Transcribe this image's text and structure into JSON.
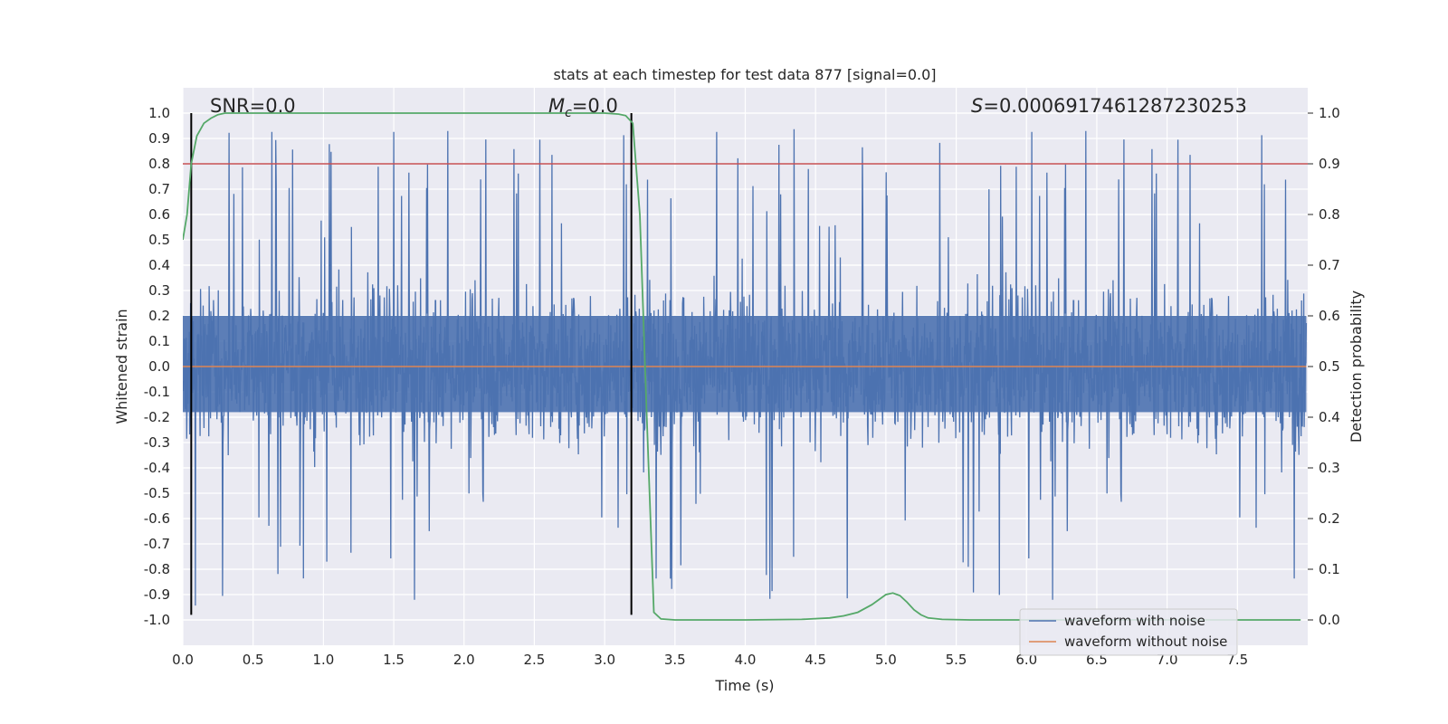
{
  "chart_data": {
    "type": "line",
    "title": "stats at each timestep for test data 877 [signal=0.0]",
    "xlabel": "Time (s)",
    "ylabel": "Whitened strain",
    "y2label": "Detection probability",
    "xlim": [
      0.0,
      8.0
    ],
    "ylim": [
      -1.1,
      1.1
    ],
    "y2lim": [
      -0.05,
      1.05
    ],
    "xticks": [
      "0.0",
      "0.5",
      "1.0",
      "1.5",
      "2.0",
      "2.5",
      "3.0",
      "3.5",
      "4.0",
      "4.5",
      "5.0",
      "5.5",
      "6.0",
      "6.5",
      "7.0",
      "7.5"
    ],
    "yticks": [
      "1.0",
      "0.9",
      "0.8",
      "0.7",
      "0.6",
      "0.5",
      "0.4",
      "0.3",
      "0.2",
      "0.1",
      "0.0",
      "-0.1",
      "-0.2",
      "-0.3",
      "-0.4",
      "-0.5",
      "-0.6",
      "-0.7",
      "-0.8",
      "-0.9",
      "-1.0"
    ],
    "y2ticks": [
      "1.0",
      "0.9",
      "0.8",
      "0.7",
      "0.6",
      "0.5",
      "0.4",
      "0.3",
      "0.2",
      "0.1",
      "0.0"
    ],
    "annotations": {
      "snr": "SNR=0.0",
      "mc_symbol": "M",
      "mc_subscript": "c",
      "mc_value": "=0.0",
      "s_symbol": "S",
      "s_value": "=0.0006917461287230253"
    },
    "threshold": {
      "y": 0.8,
      "color": "#c44e52"
    },
    "vlines": [
      0.06,
      3.19
    ],
    "series": [
      {
        "name": "waveform with noise",
        "color": "#4c72b0",
        "axis": "left",
        "note": "dense noise, amplitude mostly within -0.6..0.6 with spikes to ±1.0"
      },
      {
        "name": "waveform without noise",
        "color": "#dd8452",
        "axis": "left",
        "x": [
          0,
          7.99
        ],
        "y": [
          0.0,
          0.0
        ]
      },
      {
        "name": "detection probability",
        "color": "#55a868",
        "axis": "right",
        "x": [
          0.0,
          0.03,
          0.06,
          0.1,
          0.15,
          0.2,
          0.25,
          0.3,
          0.5,
          1.0,
          2.0,
          2.8,
          3.0,
          3.1,
          3.15,
          3.2,
          3.25,
          3.3,
          3.35,
          3.4,
          3.5,
          3.6,
          4.0,
          4.4,
          4.6,
          4.7,
          4.8,
          4.9,
          4.95,
          5.0,
          5.05,
          5.1,
          5.15,
          5.2,
          5.25,
          5.3,
          5.4,
          5.6,
          6.0,
          7.0,
          7.95
        ],
        "y": [
          0.75,
          0.8,
          0.9,
          0.955,
          0.98,
          0.99,
          0.997,
          1.0,
          1.0,
          1.0,
          1.0,
          1.0,
          1.0,
          0.998,
          0.995,
          0.98,
          0.8,
          0.4,
          0.015,
          0.002,
          0.0,
          0.0,
          0.0,
          0.001,
          0.004,
          0.008,
          0.015,
          0.03,
          0.04,
          0.05,
          0.053,
          0.048,
          0.035,
          0.02,
          0.01,
          0.004,
          0.001,
          0.0,
          0.0,
          0.0,
          0.0
        ]
      }
    ],
    "legend": {
      "position": "bottom-right",
      "entries": [
        "waveform with noise",
        "waveform without noise"
      ]
    }
  }
}
